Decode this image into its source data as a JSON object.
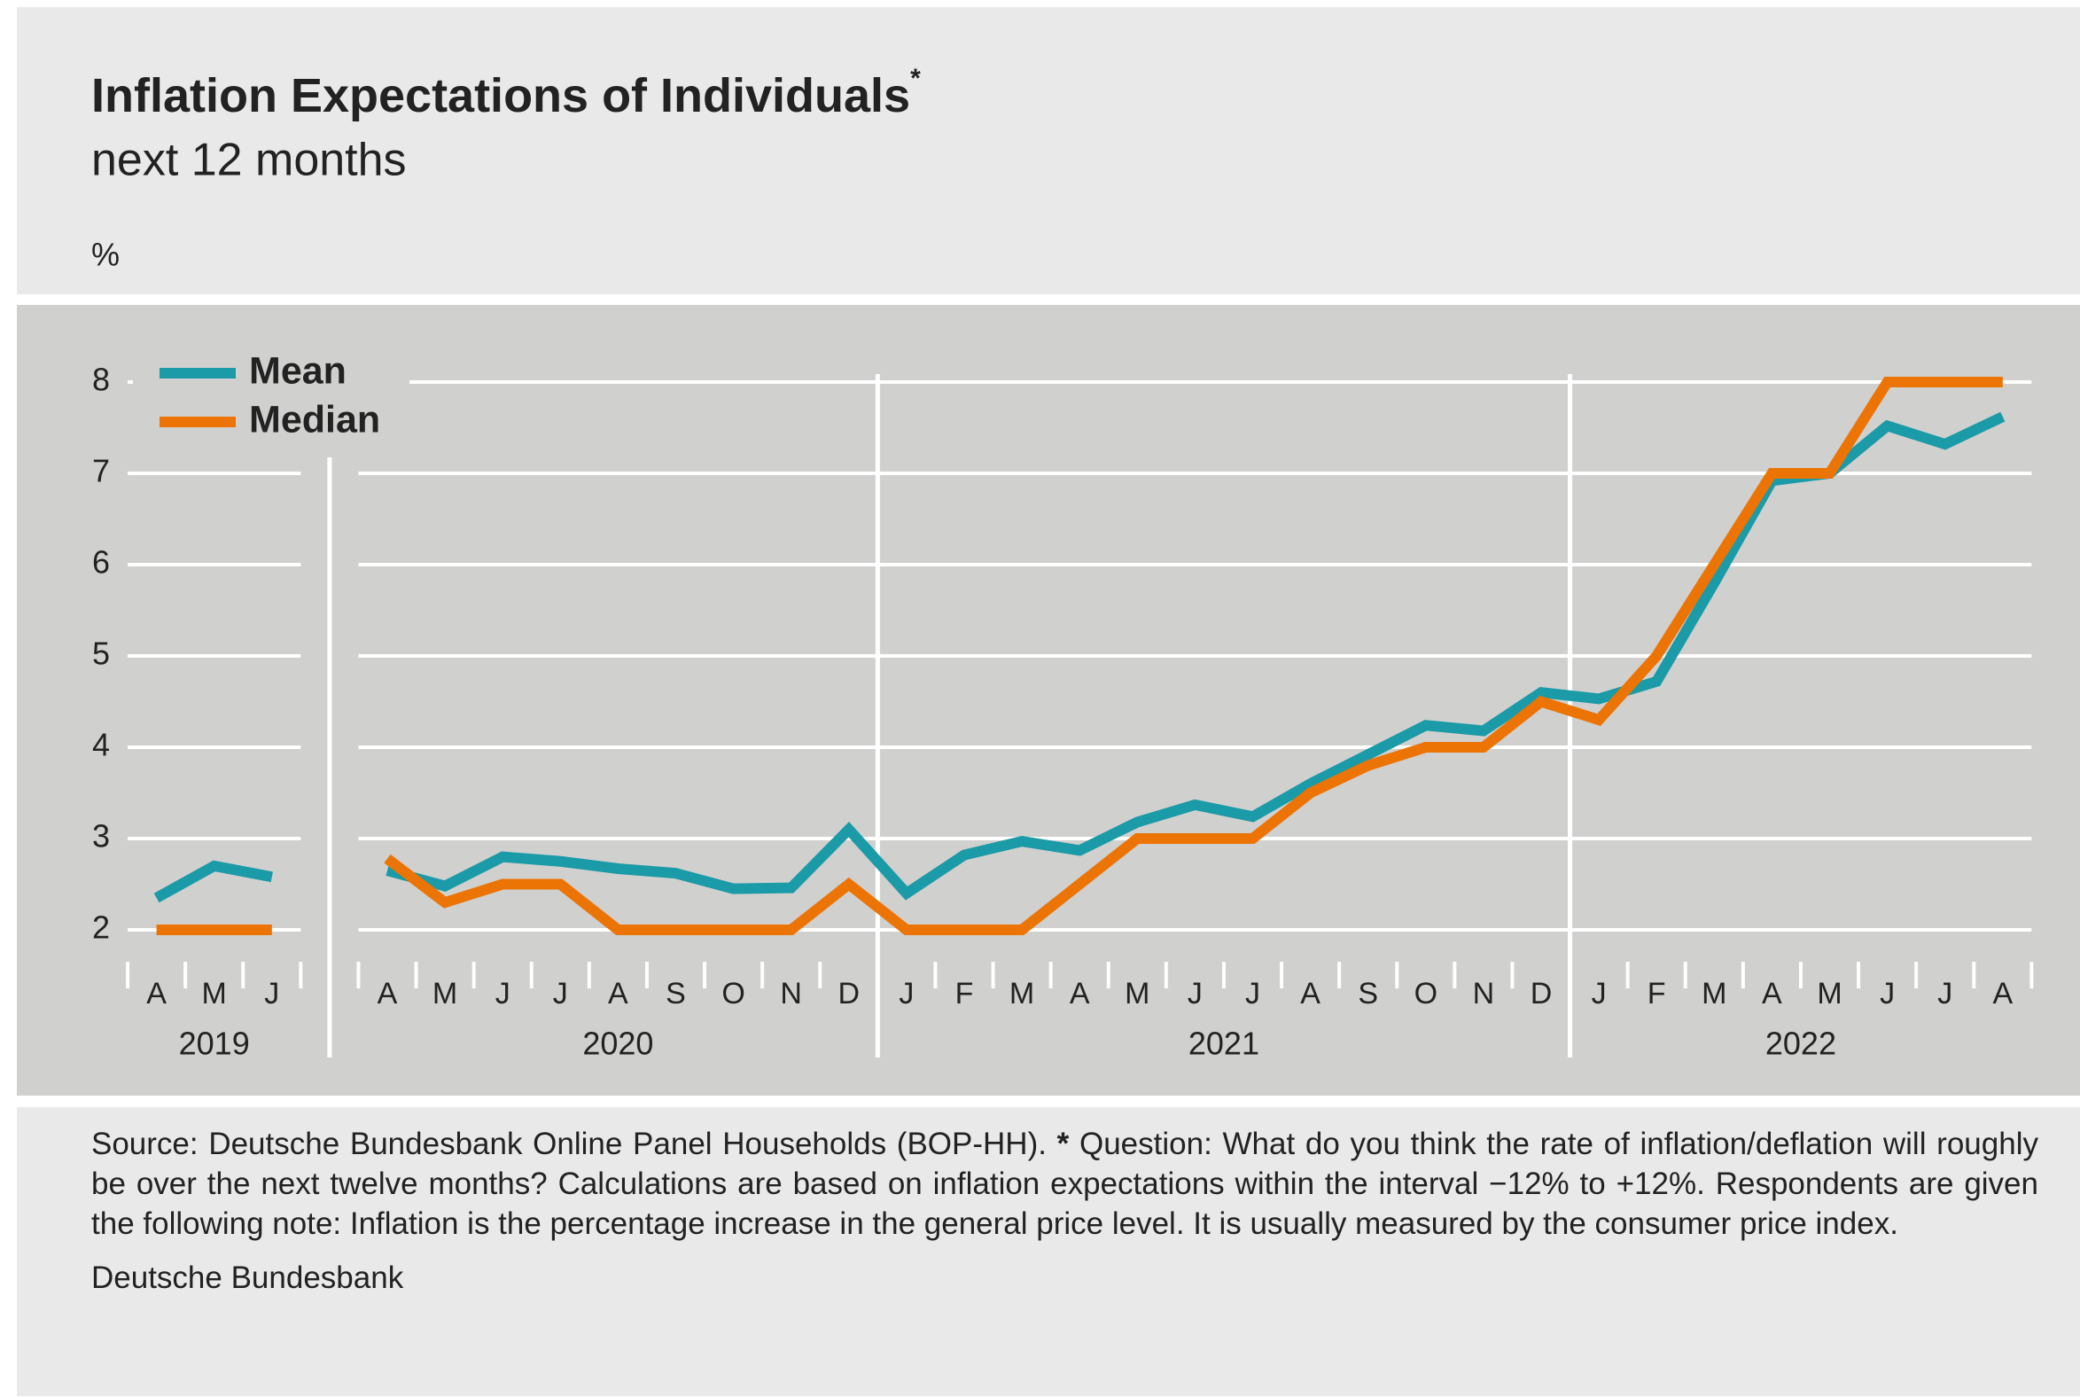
{
  "chart_data": {
    "type": "line",
    "title": "Inflation Expectations of Individuals",
    "title_mark": "*",
    "subtitle": "next 12 months",
    "y_unit": "%",
    "categories": [
      "A",
      "M",
      "J",
      null,
      "A",
      "M",
      "J",
      "J",
      "A",
      "S",
      "O",
      "N",
      "D",
      "J",
      "F",
      "M",
      "A",
      "M",
      "J",
      "J",
      "A",
      "S",
      "O",
      "N",
      "D",
      "J",
      "F",
      "M",
      "A",
      "M",
      "J",
      "J",
      "A"
    ],
    "year_labels": [
      "2019",
      "2020",
      "2021",
      "2022"
    ],
    "series": [
      {
        "name": "Mean",
        "color": "#1b9aa7",
        "values": [
          2.35,
          2.7,
          2.58,
          null,
          2.65,
          2.48,
          2.8,
          2.75,
          2.67,
          2.62,
          2.45,
          2.46,
          3.1,
          2.4,
          2.82,
          2.97,
          2.87,
          3.18,
          3.37,
          3.24,
          3.6,
          3.92,
          4.24,
          4.18,
          4.6,
          4.53,
          4.72,
          5.8,
          6.92,
          7.0,
          7.52,
          7.32,
          7.62
        ]
      },
      {
        "name": "Median",
        "color": "#ec7404",
        "values": [
          2,
          2,
          2,
          null,
          2.78,
          2.3,
          2.5,
          2.5,
          2,
          2,
          2,
          2,
          2.5,
          2,
          2,
          2,
          2.5,
          3,
          3,
          3,
          3.5,
          3.8,
          4,
          4,
          4.5,
          4.3,
          5,
          6,
          7,
          7,
          8,
          8,
          8
        ]
      }
    ],
    "ylim": [
      2,
      8
    ],
    "yticks": [
      2,
      3,
      4,
      5,
      6,
      7,
      8
    ],
    "grid": true,
    "legend": "top-left",
    "source": "Source: Deutsche Bundesbank Online Panel Households (BOP-HH).",
    "note_mark": "*",
    "note": "Question: What do you think the rate of inflation/deflation will roughly be over the next twelve months? Calculations are based on inflation expectations within the interval −12% to +12%. Respondents are given the following note: Inflation is the percentage increase in the general price level. It is usually measured by the consumer price index.",
    "publisher": "Deutsche Bundesbank"
  }
}
